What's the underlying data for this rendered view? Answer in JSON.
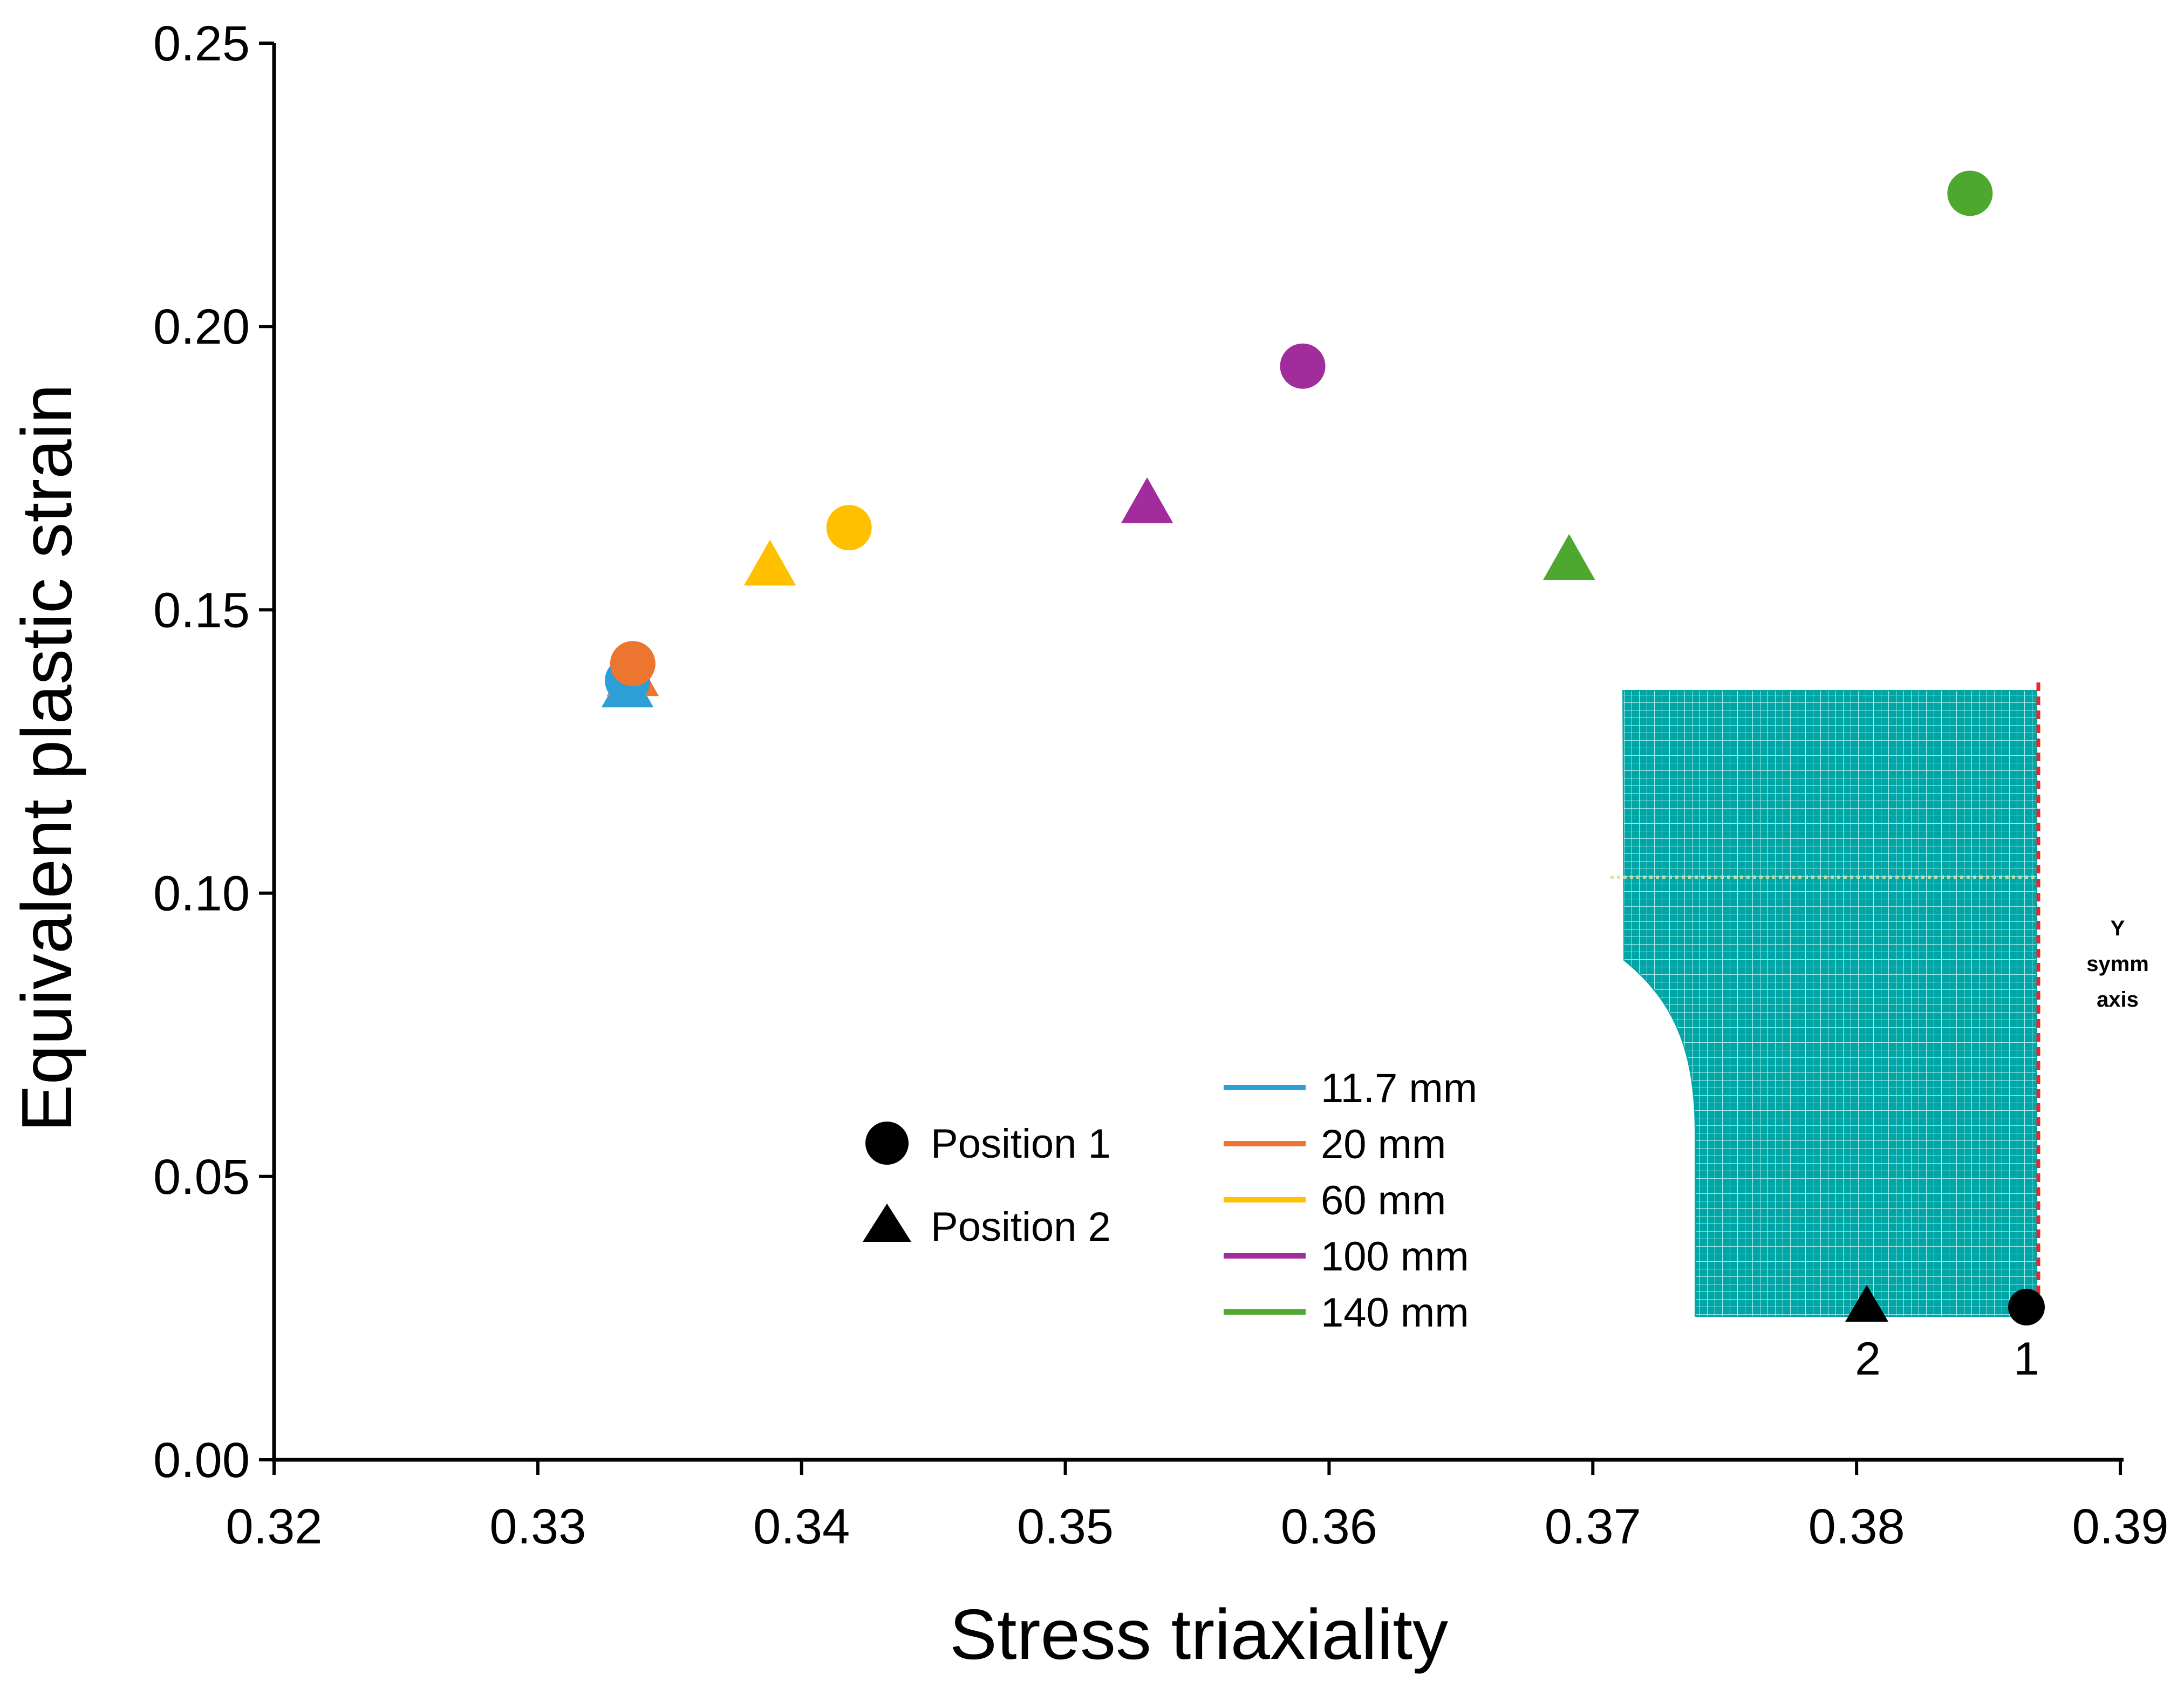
{
  "chart_data": {
    "type": "scatter",
    "xlabel": "Stress triaxiality",
    "ylabel": "Equivalent plastic strain",
    "xlim": [
      0.32,
      0.39
    ],
    "ylim": [
      0.0,
      0.25
    ],
    "xticks": [
      "0.32",
      "0.33",
      "0.34",
      "0.35",
      "0.36",
      "0.37",
      "0.38",
      "0.39"
    ],
    "yticks": [
      "0.00",
      "0.05",
      "0.10",
      "0.15",
      "0.20",
      "0.25"
    ],
    "series": [
      {
        "name": "11.7 mm",
        "color": "#2d9fd6",
        "points": [
          {
            "position": 1,
            "x": 0.3334,
            "y": 0.1375
          },
          {
            "position": 2,
            "x": 0.3334,
            "y": 0.1365
          }
        ]
      },
      {
        "name": "20 mm",
        "color": "#ec7530",
        "points": [
          {
            "position": 1,
            "x": 0.3336,
            "y": 0.1405
          },
          {
            "position": 2,
            "x": 0.3336,
            "y": 0.1385
          }
        ]
      },
      {
        "name": "60 mm",
        "color": "#ffc000",
        "points": [
          {
            "position": 1,
            "x": 0.3418,
            "y": 0.1645
          },
          {
            "position": 2,
            "x": 0.3388,
            "y": 0.158
          }
        ]
      },
      {
        "name": "100 mm",
        "color": "#a12d9c",
        "points": [
          {
            "position": 1,
            "x": 0.359,
            "y": 0.193
          },
          {
            "position": 2,
            "x": 0.3531,
            "y": 0.169
          }
        ]
      },
      {
        "name": "140 mm",
        "color": "#4ea72e",
        "points": [
          {
            "position": 1,
            "x": 0.3843,
            "y": 0.2235
          },
          {
            "position": 2,
            "x": 0.3691,
            "y": 0.159
          }
        ]
      }
    ],
    "marker_legend": [
      {
        "marker": "circle",
        "label": "Position 1"
      },
      {
        "marker": "triangle",
        "label": "Position 2"
      }
    ],
    "inset": {
      "point_labels": [
        "1",
        "2"
      ],
      "axis_label_lines": [
        "Y",
        "symm",
        "axis"
      ],
      "mesh_color": "#00a6a6",
      "axis_color": "#e8282a"
    }
  }
}
